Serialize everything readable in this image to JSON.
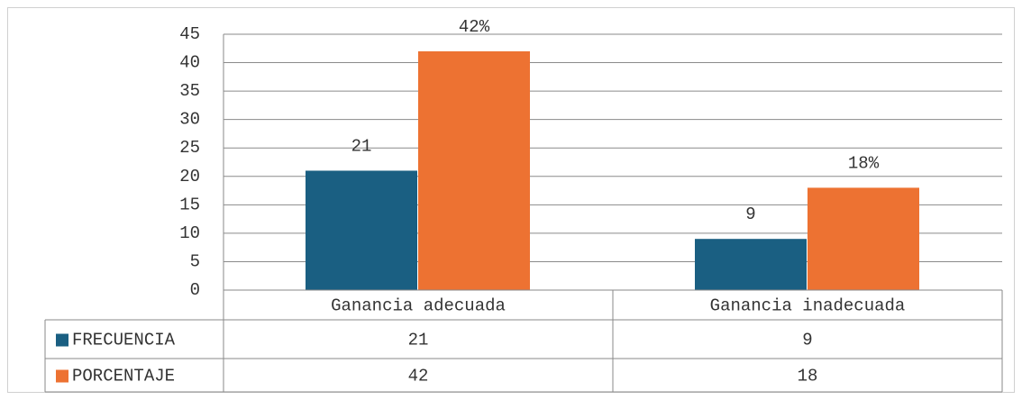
{
  "chart_data": {
    "type": "bar",
    "categories": [
      "Ganancia adecuada",
      "Ganancia inadecuada"
    ],
    "series": [
      {
        "name": "FRECUENCIA",
        "color": "#1a5f82",
        "values": [
          21,
          9
        ]
      },
      {
        "name": "PORCENTAJE",
        "color": "#ed7232",
        "values": [
          42,
          18
        ],
        "value_labels": [
          "42%",
          "18%"
        ]
      }
    ],
    "ylim": [
      0,
      45
    ],
    "yticks": [
      0,
      5,
      10,
      15,
      20,
      25,
      30,
      35,
      40,
      45
    ],
    "grid": true,
    "data_table": true
  }
}
